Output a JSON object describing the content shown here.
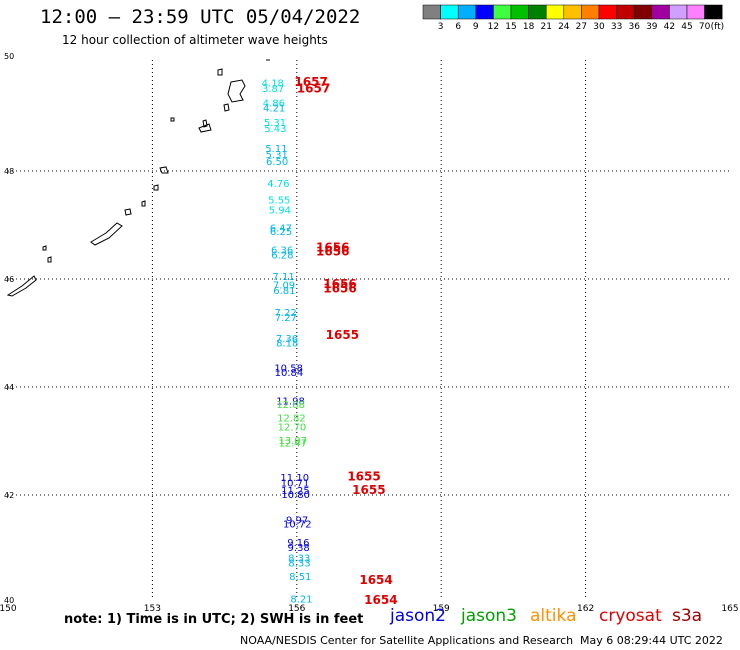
{
  "title": "12:00 — 23:59 UTC 05/04/2022",
  "subtitle": "12 hour collection of altimeter wave heights",
  "colorbar": {
    "colors": [
      "#808080",
      "#00ffff",
      "#00b0ff",
      "#0000ff",
      "#40ff40",
      "#00c000",
      "#008000",
      "#ffff00",
      "#ffc000",
      "#ff8000",
      "#ff0000",
      "#c00000",
      "#800000",
      "#a000a0",
      "#d0a0ff",
      "#ff80ff",
      "#000000"
    ],
    "labels": [
      "3",
      "6",
      "9",
      "12",
      "15",
      "18",
      "21",
      "24",
      "27",
      "30",
      "33",
      "36",
      "39",
      "42",
      "45",
      "70"
    ],
    "unit": "(ft)"
  },
  "axes": {
    "lon_ticks": [
      "150",
      "153",
      "156",
      "159",
      "162",
      "165"
    ],
    "lat_ticks": [
      "50",
      "48",
      "46",
      "44",
      "42",
      "40"
    ]
  },
  "observations": [
    {
      "lat": 49.58,
      "val": "4.18",
      "color": "#00e0e0"
    },
    {
      "lat": 49.48,
      "val": "3.87",
      "color": "#00e0e0"
    },
    {
      "lat": 49.21,
      "val": "4.86",
      "color": "#00e0e0"
    },
    {
      "lat": 49.12,
      "val": "4.21",
      "color": "#00b8e8"
    },
    {
      "lat": 48.85,
      "val": "5.31",
      "color": "#00e0e0"
    },
    {
      "lat": 48.74,
      "val": "5.43",
      "color": "#00e0e0"
    },
    {
      "lat": 48.37,
      "val": "5.11",
      "color": "#00b8e8"
    },
    {
      "lat": 48.26,
      "val": "5.31",
      "color": "#00b8e8"
    },
    {
      "lat": 48.13,
      "val": "6.50",
      "color": "#00b8e8"
    },
    {
      "lat": 47.72,
      "val": "4.76",
      "color": "#00e0e0"
    },
    {
      "lat": 47.42,
      "val": "5.55",
      "color": "#00e0e0"
    },
    {
      "lat": 47.23,
      "val": "5.94",
      "color": "#00e0e0"
    },
    {
      "lat": 46.9,
      "val": "6.47",
      "color": "#00b8e8"
    },
    {
      "lat": 46.83,
      "val": "6.25",
      "color": "#00b8e8"
    },
    {
      "lat": 46.49,
      "val": "6.36",
      "color": "#00b8e8"
    },
    {
      "lat": 46.4,
      "val": "6.28",
      "color": "#00b8e8"
    },
    {
      "lat": 46.0,
      "val": "7.11",
      "color": "#00b8e8"
    },
    {
      "lat": 45.84,
      "val": "7.09",
      "color": "#00b8e8"
    },
    {
      "lat": 45.74,
      "val": "6.81",
      "color": "#00b8e8"
    },
    {
      "lat": 45.33,
      "val": "7.22",
      "color": "#00b8e8"
    },
    {
      "lat": 45.24,
      "val": "7.27",
      "color": "#00b8e8"
    },
    {
      "lat": 44.85,
      "val": "7.36",
      "color": "#00b8e8"
    },
    {
      "lat": 44.77,
      "val": "8.18",
      "color": "#00b8e8"
    },
    {
      "lat": 44.31,
      "val": "10.58",
      "color": "#0000e0"
    },
    {
      "lat": 44.22,
      "val": "10.84",
      "color": "#0000e0"
    },
    {
      "lat": 43.69,
      "val": "11.98",
      "color": "#0000e0"
    },
    {
      "lat": 43.63,
      "val": "12.08",
      "color": "#40e040"
    },
    {
      "lat": 43.38,
      "val": "12.82",
      "color": "#40e040"
    },
    {
      "lat": 43.21,
      "val": "12.70",
      "color": "#40e040"
    },
    {
      "lat": 42.96,
      "val": "13.07",
      "color": "#40e040"
    },
    {
      "lat": 42.92,
      "val": "12.47",
      "color": "#40e040"
    },
    {
      "lat": 42.28,
      "val": "11.10",
      "color": "#0000e0"
    },
    {
      "lat": 42.18,
      "val": "10.71",
      "color": "#0000e0"
    },
    {
      "lat": 42.04,
      "val": "11.25",
      "color": "#0000e0"
    },
    {
      "lat": 41.96,
      "val": "10.80",
      "color": "#0000e0"
    },
    {
      "lat": 41.49,
      "val": "9.97",
      "color": "#0000e0"
    },
    {
      "lat": 41.42,
      "val": "10.72",
      "color": "#0000e0"
    },
    {
      "lat": 41.07,
      "val": "9.16",
      "color": "#0000e0"
    },
    {
      "lat": 40.98,
      "val": "9.38",
      "color": "#0000e0"
    },
    {
      "lat": 40.79,
      "val": "8.33",
      "color": "#00b8e8"
    },
    {
      "lat": 40.69,
      "val": "8.33",
      "color": "#00b8e8"
    },
    {
      "lat": 40.44,
      "val": "8.51",
      "color": "#00b8e8"
    },
    {
      "lat": 40.03,
      "val": "8.21",
      "color": "#00b8e8"
    }
  ],
  "obs_lon_start": 155.5,
  "obs_lon_end": 156.1,
  "times": [
    {
      "lat": 49.61,
      "lon": 155.95,
      "val": "1657"
    },
    {
      "lat": 49.49,
      "lon": 156.0,
      "val": "1657"
    },
    {
      "lat": 46.55,
      "lon": 156.4,
      "val": "1656"
    },
    {
      "lat": 46.47,
      "lon": 156.4,
      "val": "1656"
    },
    {
      "lat": 45.87,
      "lon": 156.55,
      "val": "1656"
    },
    {
      "lat": 45.79,
      "lon": 156.55,
      "val": "1656"
    },
    {
      "lat": 44.93,
      "lon": 156.6,
      "val": "1655"
    },
    {
      "lat": 42.31,
      "lon": 157.05,
      "val": "1655"
    },
    {
      "lat": 42.06,
      "lon": 157.15,
      "val": "1655"
    },
    {
      "lat": 40.39,
      "lon": 157.3,
      "val": "1654"
    },
    {
      "lat": 40.02,
      "lon": 157.4,
      "val": "1654"
    }
  ],
  "time_color": "#e00000",
  "note": "note: 1) Time is in UTC; 2) SWH is in feet",
  "satellites": [
    {
      "name": "jason2",
      "color": "#0000e0"
    },
    {
      "name": "jason3",
      "color": "#00a000"
    },
    {
      "name": "altika",
      "color": "#ff9000"
    },
    {
      "name": "cryosat",
      "color": "#e00000"
    },
    {
      "name": "s3a",
      "color": "#a00000"
    }
  ],
  "credit": "NOAA/NESDIS Center for Satellite Applications and Research",
  "stamp": "May  6 08:29:44 UTC 2022"
}
